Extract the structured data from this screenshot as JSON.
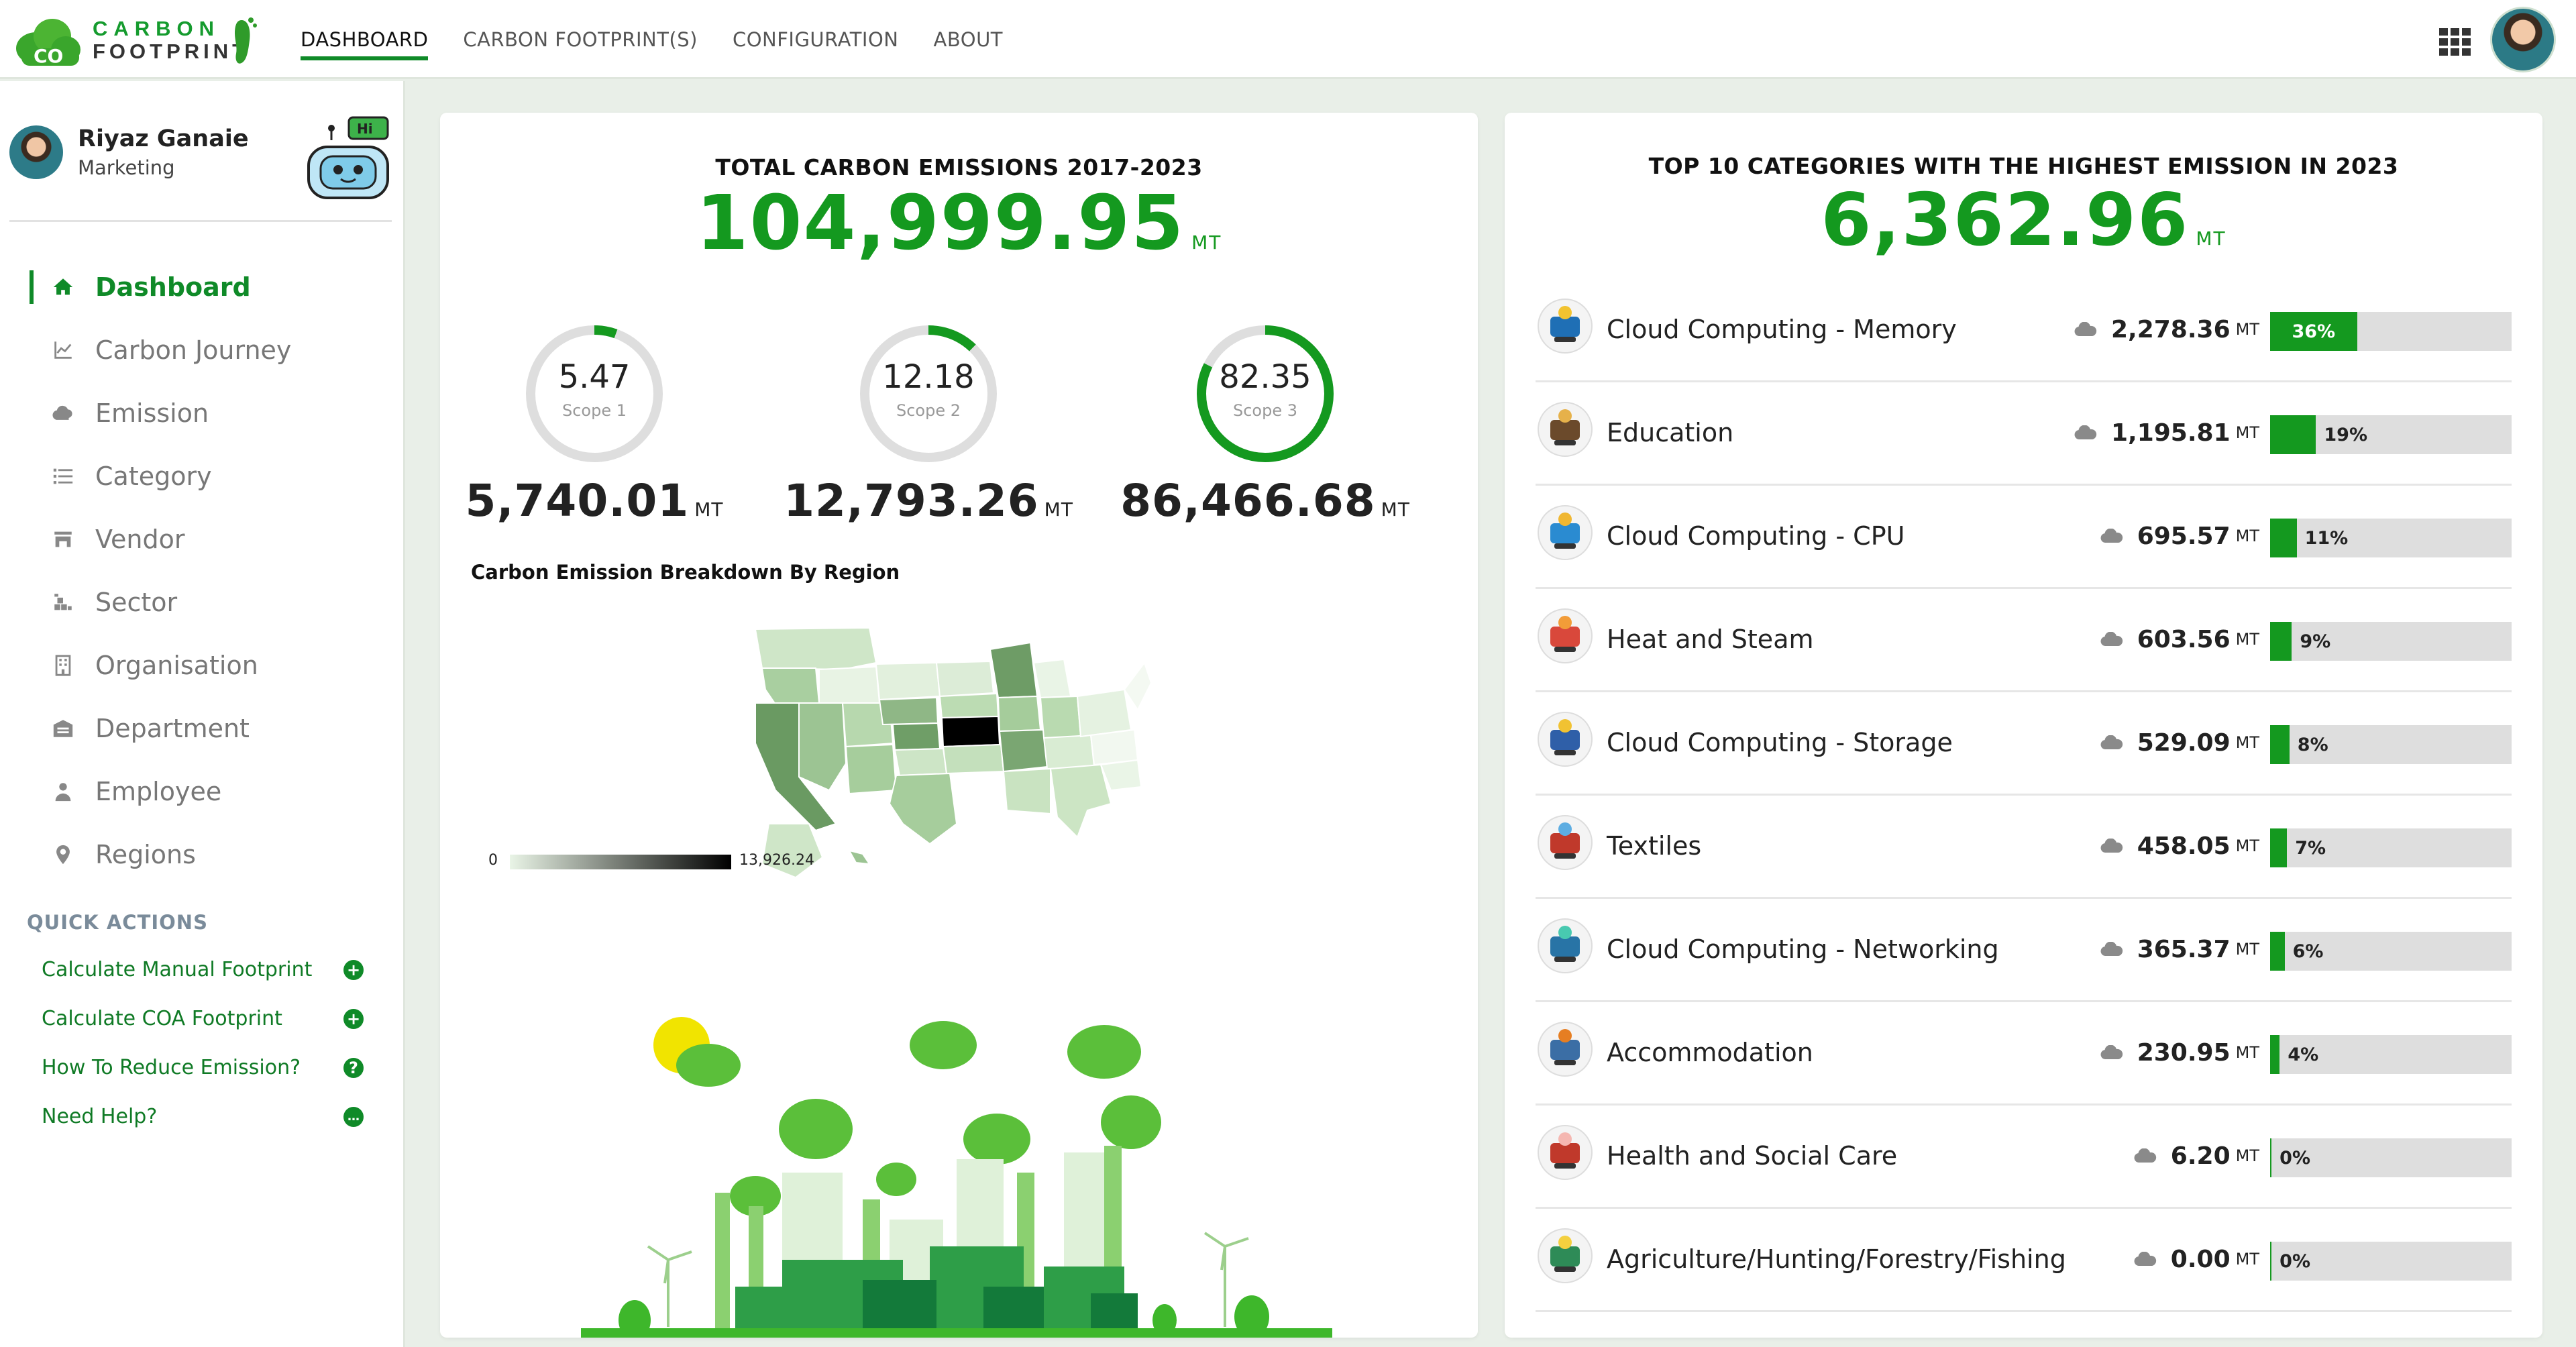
{
  "app": {
    "logo_line1": "CARBON",
    "logo_line2": "FOOTPRINT",
    "logo_badge": "CO"
  },
  "nav": {
    "items": [
      {
        "label": "DASHBOARD",
        "active": true
      },
      {
        "label": "CARBON FOOTPRINT(S)",
        "active": false
      },
      {
        "label": "CONFIGURATION",
        "active": false
      },
      {
        "label": "ABOUT",
        "active": false
      }
    ]
  },
  "user": {
    "name": "Riyaz Ganaie",
    "role": "Marketing",
    "bot_badge": "Hi"
  },
  "sidebar": {
    "items": [
      {
        "label": "Dashboard",
        "icon": "home-icon",
        "active": true
      },
      {
        "label": "Carbon Journey",
        "icon": "line-chart-icon",
        "active": false
      },
      {
        "label": "Emission",
        "icon": "cloud-icon",
        "active": false
      },
      {
        "label": "Category",
        "icon": "list-icon",
        "active": false
      },
      {
        "label": "Vendor",
        "icon": "store-icon",
        "active": false
      },
      {
        "label": "Sector",
        "icon": "sector-icon",
        "active": false
      },
      {
        "label": "Organisation",
        "icon": "building-icon",
        "active": false
      },
      {
        "label": "Department",
        "icon": "warehouse-icon",
        "active": false
      },
      {
        "label": "Employee",
        "icon": "user-icon",
        "active": false
      },
      {
        "label": "Regions",
        "icon": "map-pin-icon",
        "active": false
      }
    ],
    "quick_actions_title": "QUICK ACTIONS",
    "quick_actions": [
      {
        "label": "Calculate Manual Footprint",
        "icon": "plus-circle-icon",
        "glyph": "+"
      },
      {
        "label": "Calculate COA Footprint",
        "icon": "plus-circle-icon",
        "glyph": "+"
      },
      {
        "label": "How To Reduce Emission?",
        "icon": "question-circle-icon",
        "glyph": "?"
      },
      {
        "label": "Need Help?",
        "icon": "chat-icon",
        "glyph": "…"
      }
    ]
  },
  "total": {
    "title": "TOTAL CARBON EMISSIONS 2017-2023",
    "value": "104,999.95",
    "unit": "MT"
  },
  "scopes": [
    {
      "pct": 5.47,
      "pct_label": "5.47",
      "label": "Scope 1",
      "value": "5,740.01",
      "unit": "MT"
    },
    {
      "pct": 12.18,
      "pct_label": "12.18",
      "label": "Scope 2",
      "value": "12,793.26",
      "unit": "MT"
    },
    {
      "pct": 82.35,
      "pct_label": "82.35",
      "label": "Scope 3",
      "value": "86,466.68",
      "unit": "MT"
    }
  ],
  "map": {
    "title": "Carbon Emission Breakdown By Region",
    "legend_min": "0",
    "legend_max": "13,926.24"
  },
  "top": {
    "title": "TOP 10 CATEGORIES WITH THE HIGHEST EMISSION IN 2023",
    "value": "6,362.96",
    "unit": "MT",
    "categories": [
      {
        "name": "Cloud Computing - Memory",
        "value": "2,278.36",
        "unit": "MT",
        "pct": 36,
        "pct_label": "36%",
        "icon": "memory-icon"
      },
      {
        "name": "Education",
        "value": "1,195.81",
        "unit": "MT",
        "pct": 19,
        "pct_label": "19%",
        "icon": "books-icon"
      },
      {
        "name": "Cloud Computing - CPU",
        "value": "695.57",
        "unit": "MT",
        "pct": 11,
        "pct_label": "11%",
        "icon": "cpu-icon"
      },
      {
        "name": "Heat and Steam",
        "value": "603.56",
        "unit": "MT",
        "pct": 9,
        "pct_label": "9%",
        "icon": "thermometer-icon"
      },
      {
        "name": "Cloud Computing - Storage",
        "value": "529.09",
        "unit": "MT",
        "pct": 8,
        "pct_label": "8%",
        "icon": "database-icon"
      },
      {
        "name": "Textiles",
        "value": "458.05",
        "unit": "MT",
        "pct": 7,
        "pct_label": "7%",
        "icon": "textiles-icon"
      },
      {
        "name": "Cloud Computing - Networking",
        "value": "365.37",
        "unit": "MT",
        "pct": 6,
        "pct_label": "6%",
        "icon": "network-icon"
      },
      {
        "name": "Accommodation",
        "value": "230.95",
        "unit": "MT",
        "pct": 4,
        "pct_label": "4%",
        "icon": "house-icon"
      },
      {
        "name": "Health and Social Care",
        "value": "6.20",
        "unit": "MT",
        "pct": 0,
        "pct_label": "0%",
        "icon": "health-icon"
      },
      {
        "name": "Agriculture/Hunting/Forestry/Fishing",
        "value": "0.00",
        "unit": "MT",
        "pct": 0,
        "pct_label": "0%",
        "icon": "plant-icon"
      }
    ]
  },
  "colors": {
    "accent": "#0f8a28",
    "bright_green": "#14991f",
    "bar_bg": "#dedede"
  }
}
